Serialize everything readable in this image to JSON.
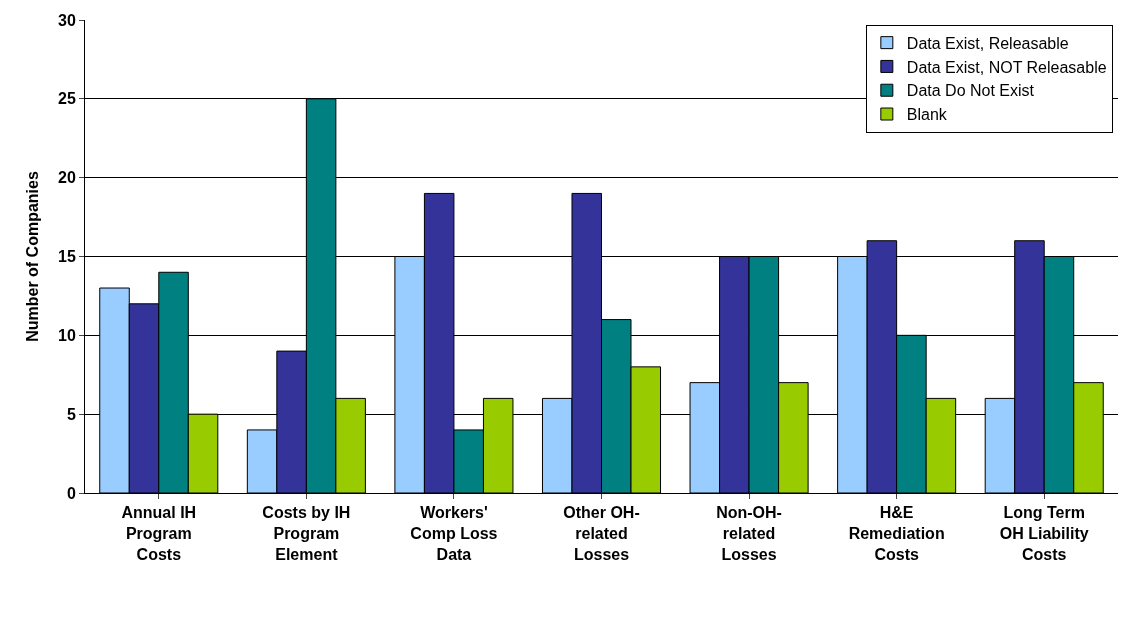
{
  "chart_data": {
    "type": "bar",
    "ylabel": "Number of Companies",
    "categories": [
      "Annual IH\nProgram\nCosts",
      "Costs by IH\nProgram\nElement",
      "Workers'\nComp Loss\nData",
      "Other OH-\nrelated\nLosses",
      "Non-OH-\nrelated\nLosses",
      "H&E\nRemediation\nCosts",
      "Long Term\nOH Liability\nCosts"
    ],
    "series": [
      {
        "name": "Data Exist, Releasable",
        "color": "#99ccff",
        "values": [
          13,
          4,
          15,
          6,
          7,
          15,
          6
        ]
      },
      {
        "name": "Data Exist, NOT Releasable",
        "color": "#333399",
        "values": [
          12,
          9,
          19,
          19,
          15,
          16,
          16
        ]
      },
      {
        "name": "Data Do Not Exist",
        "color": "#008080",
        "values": [
          14,
          25,
          4,
          11,
          15,
          10,
          15
        ]
      },
      {
        "name": "Blank",
        "color": "#99cc00",
        "values": [
          5,
          6,
          6,
          8,
          7,
          6,
          7
        ]
      }
    ],
    "ylim": [
      0,
      30
    ],
    "yticks": [
      0,
      5,
      10,
      15,
      20,
      25,
      30
    ],
    "grid": "y",
    "legend": "top right"
  }
}
